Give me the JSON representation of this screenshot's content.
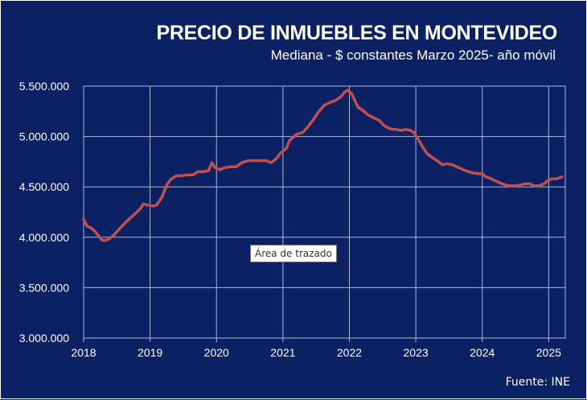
{
  "chart_data": {
    "type": "line",
    "title": "PRECIO DE INMUEBLES EN MONTEVIDEO",
    "subtitle": "Mediana - $ constantes Marzo 2025- año móvil",
    "xlabel": "",
    "ylabel": "",
    "source": "Fuente: INE",
    "plot_area_tooltip": "Área de trazado",
    "ylim": [
      3000000,
      5500000
    ],
    "xlim": [
      2018.0,
      2025.25
    ],
    "y_ticks": [
      {
        "value": 3000000,
        "label": "3.000.000"
      },
      {
        "value": 3500000,
        "label": "3.500.000"
      },
      {
        "value": 4000000,
        "label": "4.000.000"
      },
      {
        "value": 4500000,
        "label": "4.500.000"
      },
      {
        "value": 5000000,
        "label": "5.000.000"
      },
      {
        "value": 5500000,
        "label": "5.500.000"
      }
    ],
    "x_ticks": [
      {
        "value": 2018,
        "label": "2018"
      },
      {
        "value": 2019,
        "label": "2019"
      },
      {
        "value": 2020,
        "label": "2020"
      },
      {
        "value": 2021,
        "label": "2021"
      },
      {
        "value": 2022,
        "label": "2022"
      },
      {
        "value": 2023,
        "label": "2023"
      },
      {
        "value": 2024,
        "label": "2024"
      },
      {
        "value": 2025,
        "label": "2025"
      }
    ],
    "grid": true,
    "series": [
      {
        "name": "Mediana",
        "color": "#c0504d",
        "x": [
          2018.0,
          2018.05,
          2018.12,
          2018.18,
          2018.23,
          2018.28,
          2018.33,
          2018.38,
          2018.45,
          2018.55,
          2018.65,
          2018.75,
          2018.85,
          2018.9,
          2018.95,
          2019.05,
          2019.1,
          2019.18,
          2019.25,
          2019.32,
          2019.4,
          2019.48,
          2019.55,
          2019.65,
          2019.72,
          2019.8,
          2019.88,
          2019.93,
          2019.98,
          2020.05,
          2020.12,
          2020.22,
          2020.3,
          2020.38,
          2020.48,
          2020.58,
          2020.68,
          2020.75,
          2020.82,
          2020.9,
          2020.97,
          2021.05,
          2021.1,
          2021.2,
          2021.3,
          2021.38,
          2021.45,
          2021.52,
          2021.62,
          2021.72,
          2021.8,
          2021.88,
          2021.93,
          2021.97,
          2022.03,
          2022.08,
          2022.13,
          2022.2,
          2022.27,
          2022.35,
          2022.45,
          2022.52,
          2022.6,
          2022.65,
          2022.7,
          2022.78,
          2022.85,
          2022.92,
          2022.97,
          2023.03,
          2023.1,
          2023.17,
          2023.25,
          2023.32,
          2023.4,
          2023.47,
          2023.55,
          2023.65,
          2023.75,
          2023.85,
          2023.95,
          2024.0,
          2024.05,
          2024.1,
          2024.2,
          2024.3,
          2024.4,
          2024.5,
          2024.58,
          2024.65,
          2024.72,
          2024.78,
          2024.85,
          2024.93,
          2024.98,
          2025.05,
          2025.12,
          2025.2
        ],
        "values": [
          4180000,
          4110000,
          4090000,
          4050000,
          4010000,
          3970000,
          3970000,
          3980000,
          4020000,
          4090000,
          4160000,
          4220000,
          4280000,
          4330000,
          4320000,
          4310000,
          4320000,
          4400000,
          4520000,
          4580000,
          4610000,
          4610000,
          4620000,
          4620000,
          4650000,
          4650000,
          4660000,
          4740000,
          4690000,
          4670000,
          4690000,
          4700000,
          4700000,
          4740000,
          4760000,
          4760000,
          4760000,
          4760000,
          4740000,
          4780000,
          4840000,
          4880000,
          4960000,
          5020000,
          5040000,
          5100000,
          5160000,
          5230000,
          5310000,
          5340000,
          5360000,
          5400000,
          5440000,
          5460000,
          5430000,
          5360000,
          5290000,
          5260000,
          5220000,
          5190000,
          5160000,
          5110000,
          5080000,
          5070000,
          5070000,
          5060000,
          5070000,
          5060000,
          5040000,
          4980000,
          4900000,
          4830000,
          4790000,
          4760000,
          4720000,
          4730000,
          4720000,
          4690000,
          4660000,
          4640000,
          4630000,
          4630000,
          4600000,
          4590000,
          4560000,
          4530000,
          4510000,
          4510000,
          4520000,
          4530000,
          4530000,
          4510000,
          4510000,
          4530000,
          4560000,
          4580000,
          4580000,
          4600000
        ]
      }
    ]
  },
  "colors": {
    "background": "#0b2163",
    "grid": "#aeb8d6",
    "text": "#ffffff",
    "line": "#c0504d"
  }
}
